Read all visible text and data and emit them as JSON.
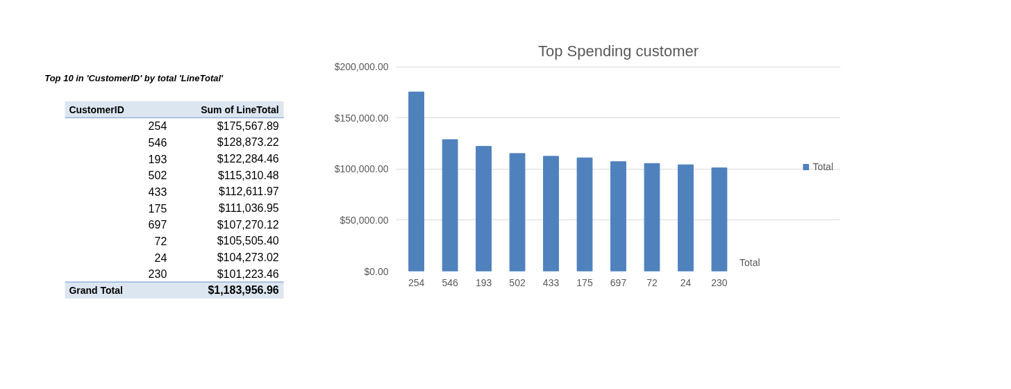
{
  "chart_data": {
    "type": "bar",
    "title": "Top Spending customer",
    "xlabel": "Total",
    "categories": [
      "254",
      "546",
      "193",
      "502",
      "433",
      "175",
      "697",
      "72",
      "24",
      "230"
    ],
    "series": [
      {
        "name": "Total",
        "color": "#4f81bd",
        "values": [
          175567.89,
          128873.22,
          122284.46,
          115310.48,
          112611.97,
          111036.95,
          107270.12,
          105505.4,
          104273.02,
          101223.46
        ]
      }
    ],
    "ylim": [
      0,
      200000
    ],
    "yticks": [
      {
        "value": 0,
        "label": "$0.00"
      },
      {
        "value": 50000,
        "label": "$50,000.00"
      },
      {
        "value": 100000,
        "label": "$100,000.00"
      },
      {
        "value": 150000,
        "label": "$150,000.00"
      },
      {
        "value": 200000,
        "label": "$200,000.00"
      }
    ],
    "grid": "y",
    "legend": "right",
    "annotations": [
      "Top 10 in 'CustomerID' by total 'LineTotal'",
      "CustomerID",
      "Sum of LineTotal",
      "Grand Total",
      "$1,183,956.96",
      "$175,567.89",
      "$128,873.22",
      "$122,284.46",
      "$115,310.48",
      "$112,611.97",
      "$111,036.95",
      "$107,270.12",
      "$105,505.40",
      "$104,273.02",
      "$101,223.46"
    ]
  }
}
